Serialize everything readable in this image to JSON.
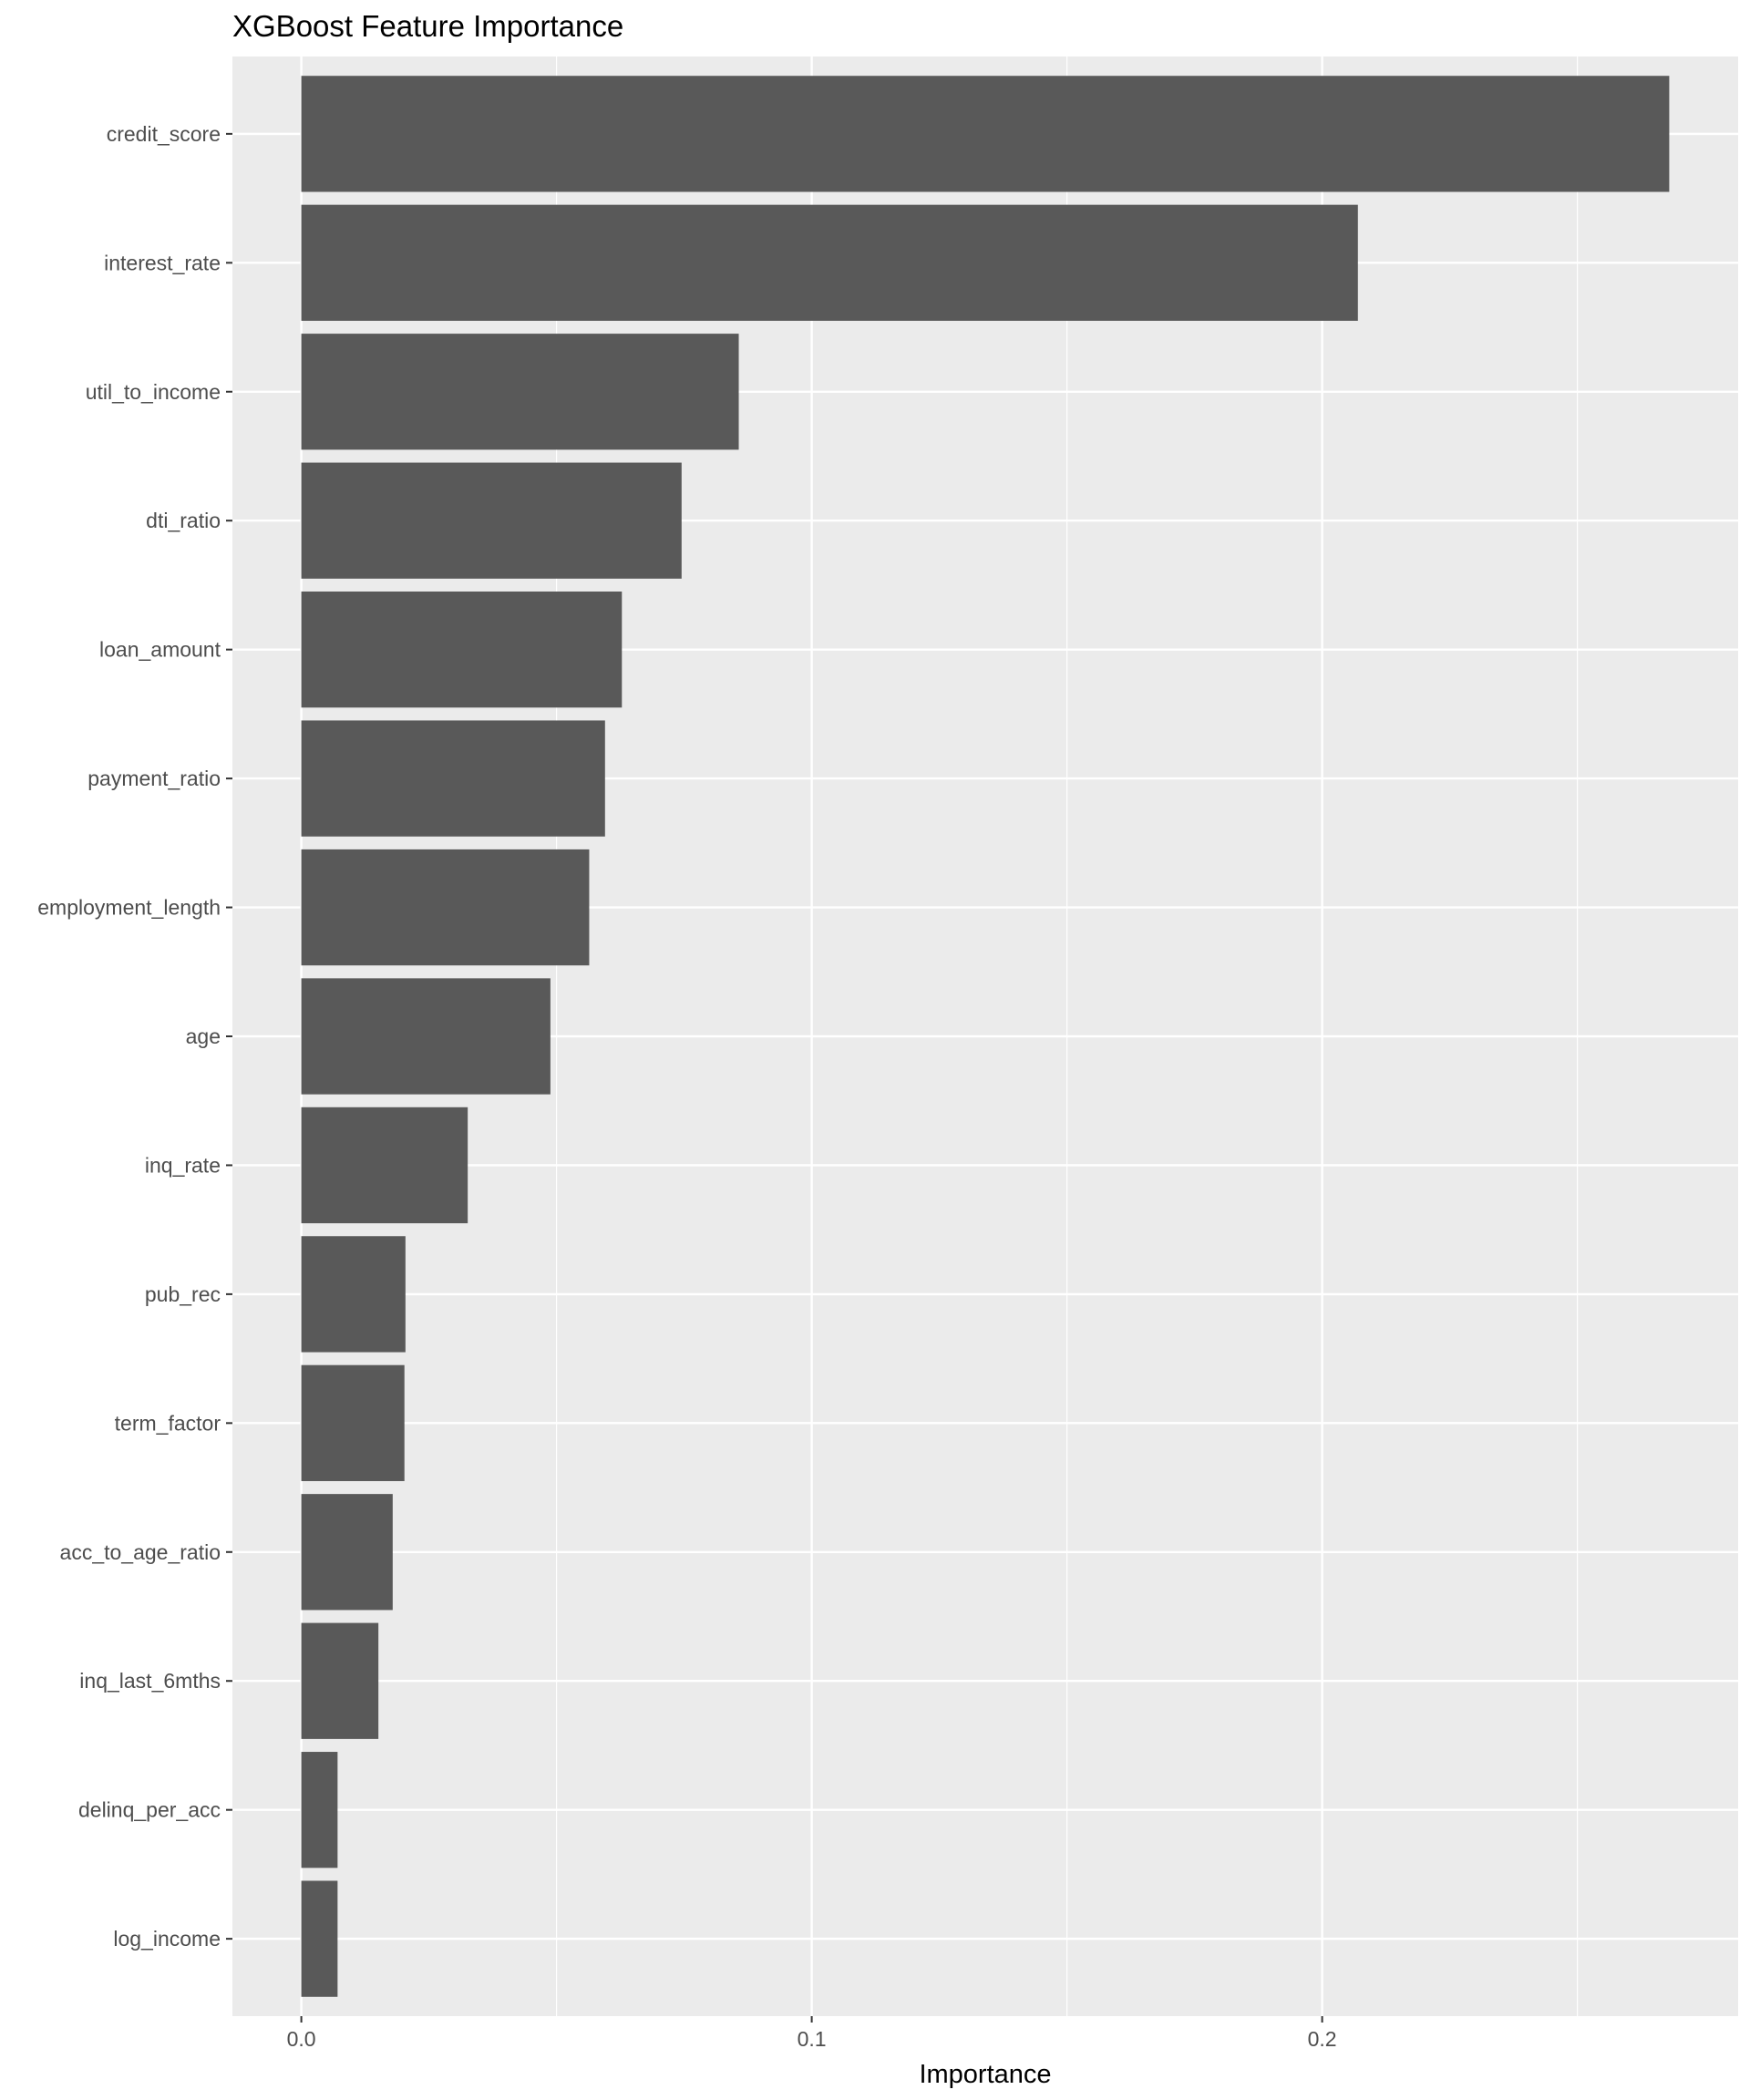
{
  "chart_data": {
    "type": "bar",
    "orientation": "horizontal",
    "title": "XGBoost Feature Importance",
    "xlabel": "Importance",
    "ylabel": "",
    "categories": [
      "credit_score",
      "interest_rate",
      "util_to_income",
      "dti_ratio",
      "loan_amount",
      "payment_ratio",
      "employment_length",
      "age",
      "inq_rate",
      "pub_rec",
      "term_factor",
      "acc_to_age_ratio",
      "inq_last_6mths",
      "delinq_per_acc",
      "log_income"
    ],
    "values": [
      0.268,
      0.207,
      0.0857,
      0.0745,
      0.0628,
      0.0595,
      0.0564,
      0.0488,
      0.0326,
      0.0204,
      0.0202,
      0.0179,
      0.0151,
      0.0071,
      0.0071
    ],
    "xlim": [
      -0.0135,
      0.2815
    ],
    "xticks": [
      0.0,
      0.1,
      0.2
    ],
    "xtick_labels": [
      "0.0",
      "0.1",
      "0.2"
    ],
    "grid": true,
    "legend": "none",
    "colors": {
      "bar": "#595959",
      "panel": "#ebebeb",
      "grid": "#ffffff",
      "text": "#4d4d4d",
      "title": "#000000"
    }
  }
}
